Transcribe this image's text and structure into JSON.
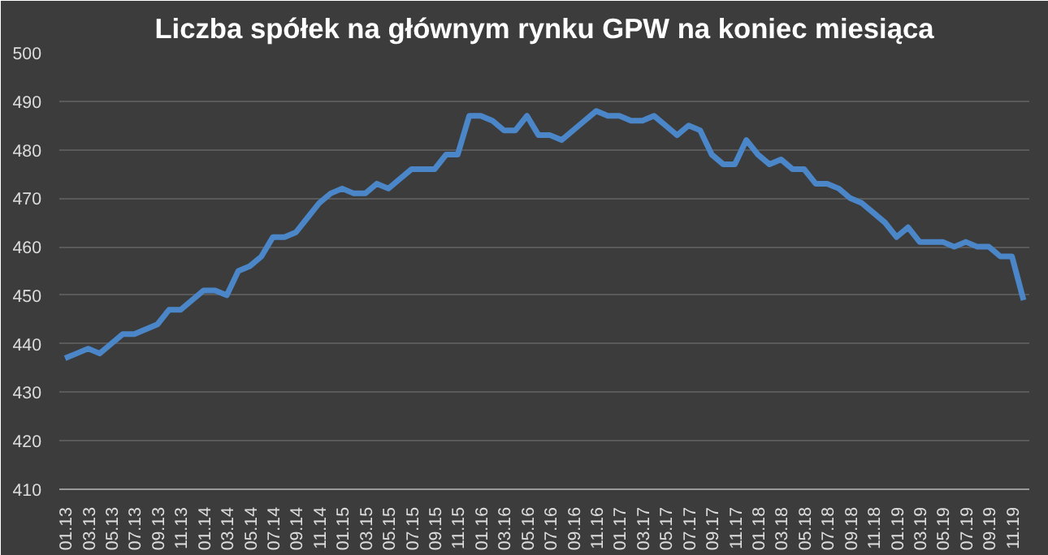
{
  "chart_data": {
    "type": "line",
    "title": "Liczba spółek na głównym rynku GPW na koniec miesiąca",
    "categories": [
      "01.13",
      null,
      "03.13",
      null,
      "05.13",
      null,
      "07.13",
      null,
      "09.13",
      null,
      "11.13",
      null,
      "01.14",
      null,
      "03.14",
      null,
      "05.14",
      null,
      "07.14",
      null,
      "09.14",
      null,
      "11.14",
      null,
      "01.15",
      null,
      "03.15",
      null,
      "05.15",
      null,
      "07.15",
      null,
      "09.15",
      null,
      "11.15",
      null,
      "01.16",
      null,
      "03.16",
      null,
      "05.16",
      null,
      "07.16",
      null,
      "09.16",
      null,
      "11.16",
      null,
      "01.17",
      null,
      "03.17",
      null,
      "05.17",
      null,
      "07.17",
      null,
      "09.17",
      null,
      "11.17",
      null,
      "01.18",
      null,
      "03.18",
      null,
      "05.18",
      null,
      "07.18",
      null,
      "09.18",
      null,
      "11.18",
      null,
      "01.19",
      null,
      "03.19",
      null,
      "05.19",
      null,
      "07.19",
      null,
      "09.19",
      null,
      "11.19",
      null
    ],
    "series": [
      {
        "color": "#4a86c8",
        "values": [
          437,
          438,
          439,
          438,
          440,
          442,
          442,
          443,
          444,
          447,
          447,
          449,
          451,
          451,
          450,
          455,
          456,
          458,
          462,
          462,
          463,
          466,
          469,
          471,
          472,
          471,
          471,
          473,
          472,
          474,
          476,
          476,
          476,
          479,
          479,
          487,
          487,
          486,
          484,
          484,
          487,
          483,
          483,
          482,
          484,
          486,
          488,
          487,
          487,
          486,
          486,
          487,
          485,
          483,
          485,
          484,
          479,
          477,
          477,
          482,
          479,
          477,
          478,
          476,
          476,
          473,
          473,
          472,
          470,
          469,
          467,
          465,
          462,
          464,
          461,
          461,
          461,
          460,
          461,
          460,
          460,
          458,
          458,
          449
        ]
      }
    ],
    "ylim": [
      410,
      500
    ],
    "yticks": [
      410,
      420,
      430,
      440,
      450,
      460,
      470,
      480,
      490,
      500
    ],
    "grid": "y",
    "marker": "none",
    "line_style": "solid"
  }
}
